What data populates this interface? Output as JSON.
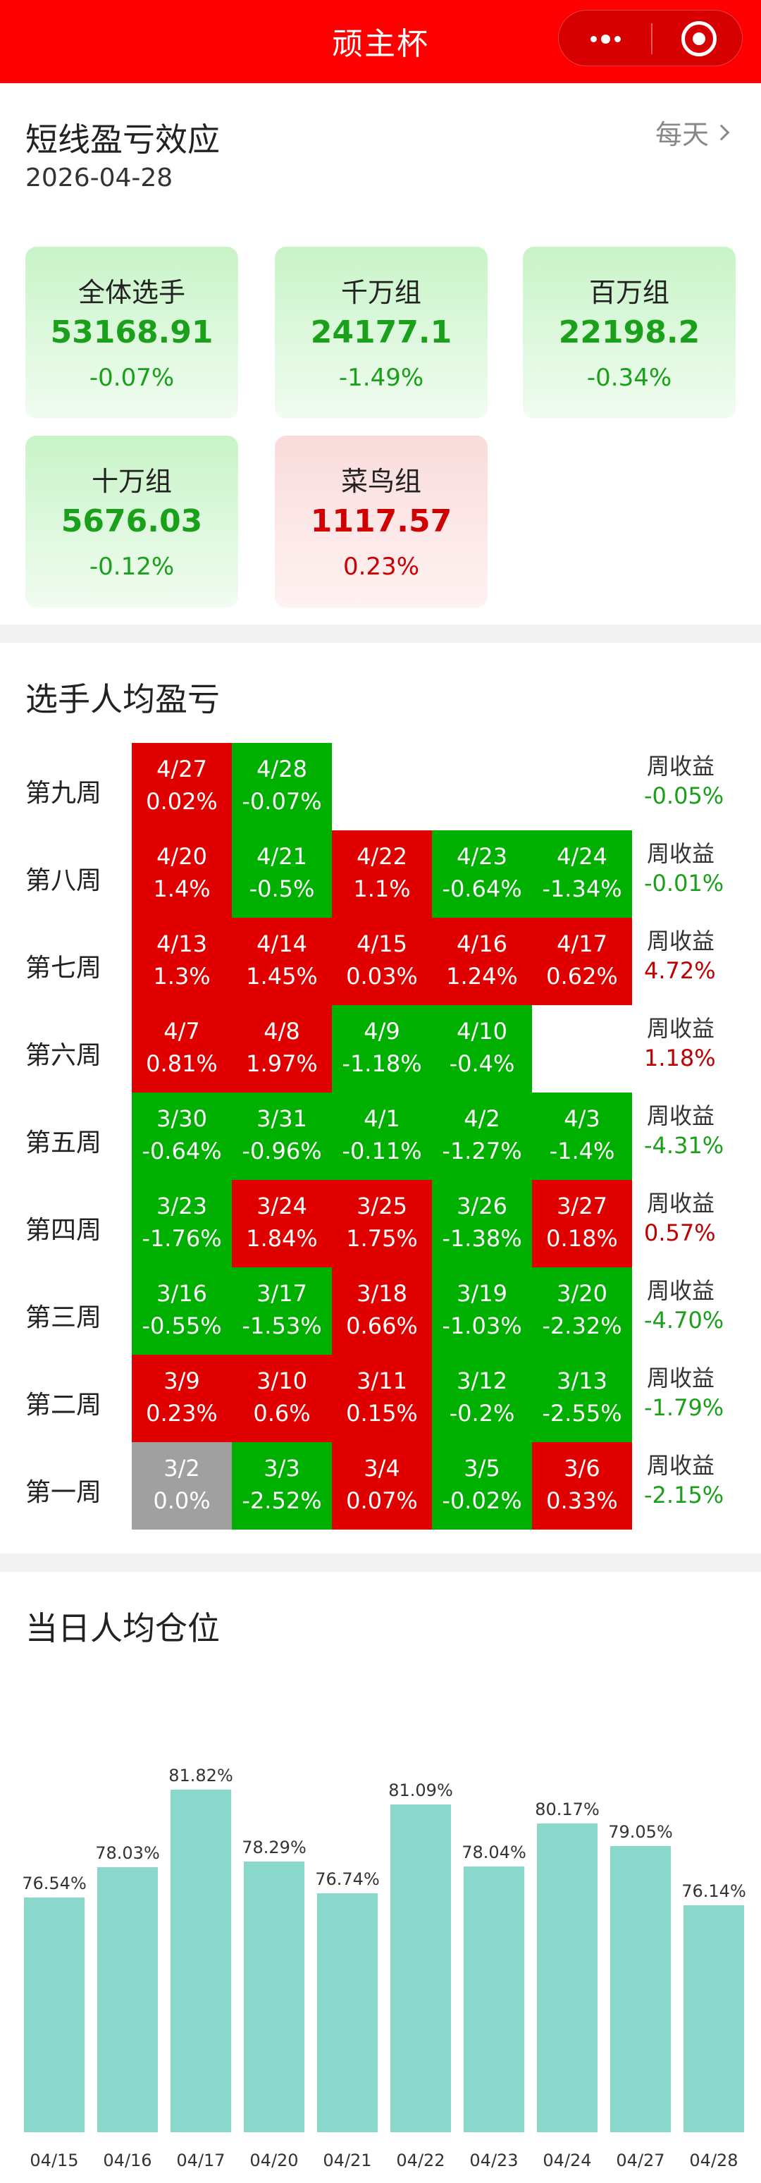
{
  "header": {
    "title": "顽主杯",
    "more_icon": "more-dots-icon",
    "close_icon": "target-close-icon"
  },
  "effect": {
    "title": "短线盈亏效应",
    "date": "2026-04-28",
    "frequency": "每天",
    "groups": [
      {
        "name": "全体选手",
        "value": "53168.91",
        "change": "-0.07%",
        "trend": "down"
      },
      {
        "name": "千万组",
        "value": "24177.1",
        "change": "-1.49%",
        "trend": "down"
      },
      {
        "name": "百万组",
        "value": "22198.2",
        "change": "-0.34%",
        "trend": "down"
      },
      {
        "name": "十万组",
        "value": "5676.03",
        "change": "-0.12%",
        "trend": "down"
      },
      {
        "name": "菜鸟组",
        "value": "1117.57",
        "change": "0.23%",
        "trend": "up"
      }
    ]
  },
  "weekly": {
    "title": "选手人均盈亏",
    "week_return_label": "周收益",
    "weeks": [
      {
        "name": "第九周",
        "return": "-0.05%",
        "days": [
          {
            "date": "4/27",
            "pct": "0.02%"
          },
          {
            "date": "4/28",
            "pct": "-0.07%"
          }
        ]
      },
      {
        "name": "第八周",
        "return": "-0.01%",
        "days": [
          {
            "date": "4/20",
            "pct": "1.4%"
          },
          {
            "date": "4/21",
            "pct": "-0.5%"
          },
          {
            "date": "4/22",
            "pct": "1.1%"
          },
          {
            "date": "4/23",
            "pct": "-0.64%"
          },
          {
            "date": "4/24",
            "pct": "-1.34%"
          }
        ]
      },
      {
        "name": "第七周",
        "return": "4.72%",
        "days": [
          {
            "date": "4/13",
            "pct": "1.3%"
          },
          {
            "date": "4/14",
            "pct": "1.45%"
          },
          {
            "date": "4/15",
            "pct": "0.03%"
          },
          {
            "date": "4/16",
            "pct": "1.24%"
          },
          {
            "date": "4/17",
            "pct": "0.62%"
          }
        ]
      },
      {
        "name": "第六周",
        "return": "1.18%",
        "days": [
          {
            "date": "4/7",
            "pct": "0.81%"
          },
          {
            "date": "4/8",
            "pct": "1.97%"
          },
          {
            "date": "4/9",
            "pct": "-1.18%"
          },
          {
            "date": "4/10",
            "pct": "-0.4%"
          }
        ]
      },
      {
        "name": "第五周",
        "return": "-4.31%",
        "days": [
          {
            "date": "3/30",
            "pct": "-0.64%"
          },
          {
            "date": "3/31",
            "pct": "-0.96%"
          },
          {
            "date": "4/1",
            "pct": "-0.11%"
          },
          {
            "date": "4/2",
            "pct": "-1.27%"
          },
          {
            "date": "4/3",
            "pct": "-1.4%"
          }
        ]
      },
      {
        "name": "第四周",
        "return": "0.57%",
        "days": [
          {
            "date": "3/23",
            "pct": "-1.76%"
          },
          {
            "date": "3/24",
            "pct": "1.84%"
          },
          {
            "date": "3/25",
            "pct": "1.75%"
          },
          {
            "date": "3/26",
            "pct": "-1.38%"
          },
          {
            "date": "3/27",
            "pct": "0.18%"
          }
        ]
      },
      {
        "name": "第三周",
        "return": "-4.70%",
        "days": [
          {
            "date": "3/16",
            "pct": "-0.55%"
          },
          {
            "date": "3/17",
            "pct": "-1.53%"
          },
          {
            "date": "3/18",
            "pct": "0.66%"
          },
          {
            "date": "3/19",
            "pct": "-1.03%"
          },
          {
            "date": "3/20",
            "pct": "-2.32%"
          }
        ]
      },
      {
        "name": "第二周",
        "return": "-1.79%",
        "days": [
          {
            "date": "3/9",
            "pct": "0.23%"
          },
          {
            "date": "3/10",
            "pct": "0.6%"
          },
          {
            "date": "3/11",
            "pct": "0.15%"
          },
          {
            "date": "3/12",
            "pct": "-0.2%"
          },
          {
            "date": "3/13",
            "pct": "-2.55%"
          }
        ]
      },
      {
        "name": "第一周",
        "return": "-2.15%",
        "days": [
          {
            "date": "3/2",
            "pct": "0.0%"
          },
          {
            "date": "3/3",
            "pct": "-2.52%"
          },
          {
            "date": "3/4",
            "pct": "0.07%"
          },
          {
            "date": "3/5",
            "pct": "-0.02%"
          },
          {
            "date": "3/6",
            "pct": "0.33%"
          }
        ]
      }
    ]
  },
  "position": {
    "title": "当日人均仓位"
  },
  "colors": {
    "up": "#e00000",
    "down": "#00b000",
    "flat": "#a0a0a0",
    "bar": "#8ad8cb",
    "header": "#ff0000"
  },
  "chart_data": {
    "type": "bar",
    "categories": [
      "04/15",
      "04/16",
      "04/17",
      "04/20",
      "04/21",
      "04/22",
      "04/23",
      "04/24",
      "04/27",
      "04/28"
    ],
    "values": [
      76.54,
      78.03,
      81.82,
      78.29,
      76.74,
      81.09,
      78.04,
      80.17,
      79.05,
      76.14
    ],
    "value_labels": [
      "76.54%",
      "78.03%",
      "81.82%",
      "78.29%",
      "76.74%",
      "81.09%",
      "78.04%",
      "80.17%",
      "79.05%",
      "76.14%"
    ],
    "title": "",
    "xlabel": "",
    "ylabel": "",
    "ylim": [
      65,
      83
    ],
    "grid": false
  }
}
